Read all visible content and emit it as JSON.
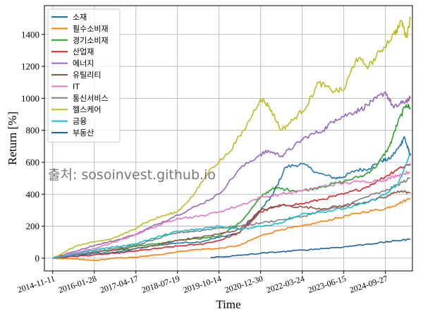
{
  "chart_data": {
    "type": "line",
    "title": "",
    "xlabel": "Time",
    "ylabel": "Return [%]",
    "watermark": "출처: sosoinvest.github.io",
    "x_tick_labels": [
      "2014-11-11",
      "2016-01-28",
      "2017-04-17",
      "2018-07-19",
      "2019-10-14",
      "2020-12-30",
      "2022-03-24",
      "2023-06-15",
      "2024-09-27"
    ],
    "x_range_index": [
      -0.2,
      8.65
    ],
    "ylim": [
      -80,
      1580
    ],
    "y_ticks": [
      0,
      200,
      400,
      600,
      800,
      1000,
      1200,
      1400
    ],
    "grid": true,
    "legend_location": "upper-left",
    "series": [
      {
        "name": "소재",
        "color": "#1f77b4",
        "x": [
          0,
          0.5,
          1,
          1.5,
          2,
          2.5,
          3,
          3.5,
          4,
          4.5,
          5,
          5.3,
          5.6,
          6,
          6.4,
          6.8,
          7,
          7.3,
          7.6,
          7.9,
          8.1,
          8.35,
          8.45,
          8.55,
          8.6
        ],
        "y": [
          0,
          15,
          30,
          35,
          60,
          80,
          95,
          100,
          130,
          160,
          300,
          400,
          570,
          590,
          530,
          500,
          510,
          550,
          560,
          610,
          620,
          700,
          760,
          680,
          640
        ]
      },
      {
        "name": "필수소비재",
        "color": "#ff7f0e",
        "x": [
          0,
          0.5,
          1,
          1.5,
          2,
          2.5,
          3,
          3.5,
          4,
          4.5,
          5,
          5.5,
          6,
          6.5,
          7,
          7.5,
          8,
          8.3,
          8.6
        ],
        "y": [
          0,
          -5,
          -15,
          0,
          5,
          20,
          40,
          55,
          60,
          80,
          140,
          180,
          200,
          230,
          260,
          290,
          310,
          340,
          375
        ]
      },
      {
        "name": "경기소비재",
        "color": "#2ca02c",
        "x": [
          0,
          0.5,
          1,
          1.5,
          2,
          2.5,
          3,
          3.5,
          4,
          4.5,
          5,
          5.3,
          5.6,
          6,
          6.5,
          7,
          7.5,
          7.8,
          8.1,
          8.3,
          8.5,
          8.6
        ],
        "y": [
          0,
          20,
          40,
          50,
          75,
          90,
          110,
          120,
          140,
          220,
          380,
          440,
          430,
          420,
          450,
          480,
          520,
          580,
          700,
          850,
          960,
          940
        ]
      },
      {
        "name": "산업재",
        "color": "#d62728",
        "x": [
          0,
          0.5,
          1,
          1.5,
          2,
          2.5,
          3,
          3.5,
          4,
          4.5,
          5,
          5.5,
          6,
          6.5,
          7,
          7.5,
          8,
          8.3,
          8.6
        ],
        "y": [
          0,
          10,
          20,
          30,
          45,
          60,
          75,
          85,
          110,
          160,
          290,
          330,
          340,
          370,
          400,
          440,
          510,
          560,
          590
        ]
      },
      {
        "name": "에너지",
        "color": "#9467bd",
        "x": [
          0,
          0.5,
          1,
          1.5,
          2,
          2.5,
          3,
          3.5,
          4,
          4.5,
          5,
          5.2,
          5.5,
          5.8,
          6.1,
          6.5,
          6.8,
          7.1,
          7.4,
          7.7,
          8,
          8.2,
          8.4,
          8.6
        ],
        "y": [
          0,
          40,
          80,
          110,
          150,
          210,
          270,
          330,
          400,
          560,
          650,
          670,
          640,
          700,
          760,
          800,
          870,
          900,
          930,
          980,
          1040,
          940,
          970,
          1000
        ]
      },
      {
        "name": "유틸리티",
        "color": "#8c564b",
        "x": [
          0,
          0.5,
          1,
          1.5,
          2,
          2.5,
          3,
          3.5,
          4,
          4.5,
          5,
          5.5,
          6,
          6.5,
          7,
          7.5,
          8,
          8.3,
          8.6
        ],
        "y": [
          0,
          20,
          40,
          50,
          60,
          80,
          110,
          130,
          150,
          180,
          300,
          330,
          320,
          310,
          330,
          350,
          380,
          420,
          410
        ]
      },
      {
        "name": "IT",
        "color": "#e377c2",
        "x": [
          0,
          0.5,
          1,
          1.5,
          2,
          2.5,
          3,
          3.5,
          4,
          4.5,
          5,
          5.5,
          6,
          6.5,
          7,
          7.5,
          8,
          8.3,
          8.6
        ],
        "y": [
          0,
          30,
          60,
          100,
          150,
          200,
          250,
          260,
          290,
          330,
          380,
          400,
          420,
          450,
          470,
          480,
          490,
          520,
          540
        ]
      },
      {
        "name": "통신서비스",
        "color": "#7f7f7f",
        "x": [
          0,
          0.5,
          1,
          1.5,
          2,
          2.5,
          3,
          3.5,
          4,
          4.5,
          5,
          5.5,
          6,
          6.5,
          7,
          7.5,
          8,
          8.3,
          8.6
        ],
        "y": [
          0,
          20,
          40,
          60,
          80,
          120,
          160,
          170,
          190,
          200,
          220,
          240,
          260,
          300,
          320,
          380,
          420,
          460,
          500
        ]
      },
      {
        "name": "헬스케어",
        "color": "#bcbd22",
        "x": [
          0,
          0.3,
          0.6,
          1,
          1.4,
          1.8,
          2.2,
          2.6,
          3,
          3.4,
          3.8,
          4.2,
          4.6,
          5,
          5.2,
          5.5,
          5.8,
          6.1,
          6.4,
          6.7,
          7,
          7.3,
          7.6,
          7.9,
          8.2,
          8.4,
          8.5,
          8.6
        ],
        "y": [
          0,
          40,
          80,
          100,
          120,
          160,
          220,
          260,
          290,
          400,
          560,
          650,
          800,
          1000,
          950,
          800,
          870,
          950,
          1100,
          1050,
          1050,
          1250,
          1200,
          1300,
          1400,
          1480,
          1380,
          1500
        ]
      },
      {
        "name": "금융",
        "color": "#17becf",
        "x": [
          0,
          0.5,
          1,
          1.5,
          2,
          2.5,
          3,
          3.5,
          4,
          4.5,
          5,
          5.5,
          6,
          6.5,
          7,
          7.5,
          8,
          8.3,
          8.6
        ],
        "y": [
          0,
          25,
          50,
          70,
          90,
          130,
          170,
          180,
          200,
          180,
          200,
          220,
          280,
          290,
          310,
          340,
          400,
          460,
          650
        ]
      },
      {
        "name": "부동산",
        "color": "#1f5fa8",
        "x": [
          3.8,
          4.2,
          4.6,
          5,
          5.5,
          6,
          6.5,
          7,
          7.5,
          8,
          8.3,
          8.6
        ],
        "y": [
          5,
          10,
          20,
          30,
          40,
          50,
          60,
          70,
          85,
          100,
          110,
          118
        ]
      }
    ]
  }
}
